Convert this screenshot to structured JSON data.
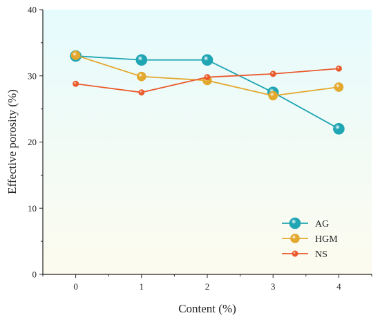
{
  "chart_data": {
    "type": "line",
    "xlabel": "Content (%)",
    "ylabel": "Effective porosity (%)",
    "x": [
      0,
      1,
      2,
      3,
      4
    ],
    "xlim": [
      -0.5,
      4.5
    ],
    "ylim": [
      0,
      40
    ],
    "xticks": [
      "0",
      "1",
      "2",
      "3",
      "4"
    ],
    "yticks": [
      "0",
      "10",
      "20",
      "30",
      "40"
    ],
    "grid": false,
    "legend_position": "bottom-right",
    "background_gradient": [
      "#e6fbfd",
      "#fdfbef"
    ],
    "series": [
      {
        "name": "AG",
        "values": [
          33.0,
          32.4,
          32.4,
          27.5,
          22.0
        ],
        "color": "#1fa5b3",
        "marker": "large-sphere"
      },
      {
        "name": "HGM",
        "values": [
          33.1,
          29.9,
          29.3,
          27.0,
          28.3
        ],
        "color": "#e3a82e",
        "marker": "medium-sphere"
      },
      {
        "name": "NS",
        "values": [
          28.8,
          27.5,
          29.8,
          30.3,
          31.1
        ],
        "color": "#ea5a2c",
        "marker": "small-sphere"
      }
    ]
  }
}
